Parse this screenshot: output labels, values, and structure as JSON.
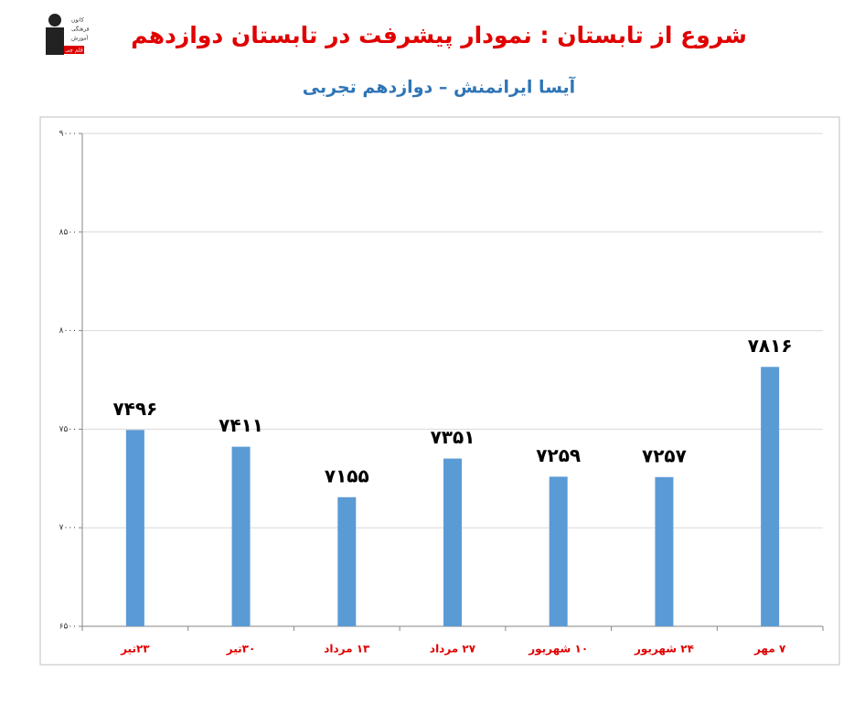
{
  "logo": [
    "کانون",
    "فرهنگی",
    "آموزش",
    "قلم چی"
  ],
  "chart_data": {
    "type": "bar",
    "title": "شروع از تابستان : نمودار پیشرفت در تابستان دوازدهم",
    "subtitle": "آیسا ایرانمنش – دوازدهم تجربی",
    "categories": [
      "۲۳تیر",
      "۳۰تیر",
      "۱۳ مرداد",
      "۲۷ مرداد",
      "۱۰ شهریور",
      "۲۴ شهریور",
      "۷ مهر"
    ],
    "values": [
      7496,
      7411,
      7155,
      7351,
      7259,
      7257,
      7816
    ],
    "value_labels": [
      "۷۴۹۶",
      "۷۴۱۱",
      "۷۱۵۵",
      "۷۳۵۱",
      "۷۲۵۹",
      "۷۲۵۷",
      "۷۸۱۶"
    ],
    "color": "#5b9bd5",
    "ylim": [
      6500,
      9000
    ],
    "yticks": [
      {
        "value": 6500,
        "label": "۶۵۰۰"
      },
      {
        "value": 7000,
        "label": "۷۰۰۰"
      },
      {
        "value": 7500,
        "label": "۷۵۰۰"
      },
      {
        "value": 8000,
        "label": "۸۰۰۰"
      },
      {
        "value": 8500,
        "label": "۸۵۰۰"
      },
      {
        "value": 9000,
        "label": "۹۰۰۰"
      }
    ],
    "grid": true
  }
}
